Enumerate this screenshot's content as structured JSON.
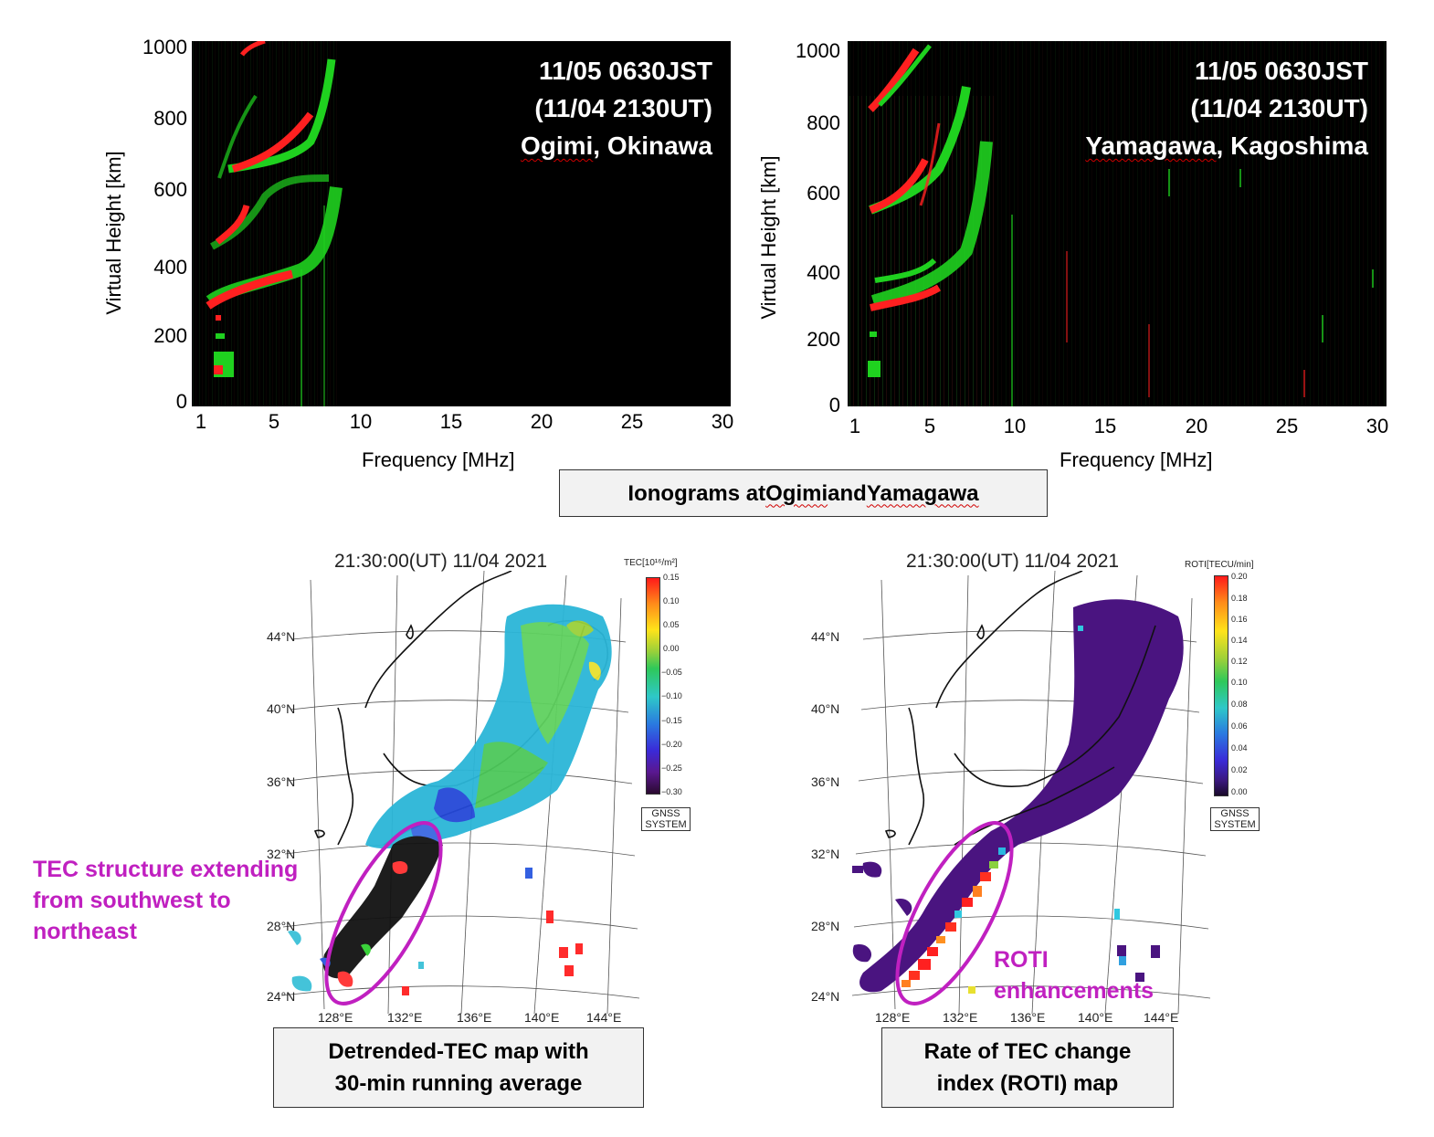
{
  "ionograms": {
    "y_axis_title": "Virtual Height  [km]",
    "x_axis_title": "Frequency [MHz]",
    "y_ticks": [
      "1000",
      "800",
      "600",
      "400",
      "200",
      "0"
    ],
    "x_ticks": [
      "1",
      "5",
      "10",
      "15",
      "20",
      "25",
      "30"
    ],
    "left": {
      "line1": "11/05 0630JST",
      "line2": "(11/04 2130UT)",
      "station": "Ogimi",
      "station_rest": ", Okinawa"
    },
    "right": {
      "line1": "11/05 0630JST",
      "line2": "(11/04 2130UT)",
      "station": "Yamagawa",
      "station_rest": ", Kagoshima"
    },
    "caption": {
      "part1": "Ionograms at ",
      "ogimi": "Ogimi",
      "part2": " and ",
      "yamagawa": "Yamagawa"
    }
  },
  "maps": {
    "lat_labels": [
      "44°N",
      "40°N",
      "36°N",
      "32°N",
      "28°N",
      "24°N"
    ],
    "lon_labels": [
      "128°E",
      "132°E",
      "136°E",
      "140°E",
      "144°E"
    ],
    "gnss_line1": "GNSS",
    "gnss_line2": "SYSTEM",
    "left": {
      "title": "21:30:00(UT) 11/04 2021",
      "colorbar_title": "TEC[10¹⁶/m²]",
      "colorbar_ticks": [
        "0.15",
        "0.10",
        "0.05",
        "0.00",
        "−0.05",
        "−0.10",
        "−0.15",
        "−0.20",
        "−0.25",
        "−0.30"
      ],
      "caption_line1": "Detrended-TEC map with",
      "caption_line2": "30-min running average",
      "annotation_line1": "TEC structure extending",
      "annotation_line2": "from southwest to",
      "annotation_line3": "northeast"
    },
    "right": {
      "title": "21:30:00(UT) 11/04 2021",
      "colorbar_title": "ROTI[TECU/min]",
      "colorbar_ticks": [
        "0.20",
        "0.18",
        "0.16",
        "0.14",
        "0.12",
        "0.10",
        "0.08",
        "0.06",
        "0.04",
        "0.02",
        "0.00"
      ],
      "caption_line1": "Rate of TEC change",
      "caption_line2": "index (ROTI) map",
      "annotation_line1": "ROTI",
      "annotation_line2": "enhancements"
    },
    "colors": {
      "highlight_ellipse": "#c020c0",
      "roti_background": "#4a1480"
    }
  }
}
